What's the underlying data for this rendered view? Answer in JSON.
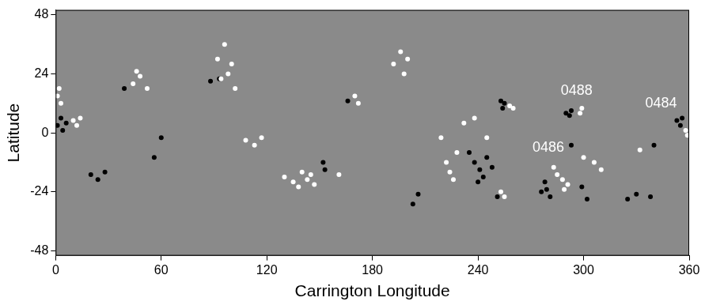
{
  "chart_data": {
    "type": "scatter",
    "x_label": "Carrington Longitude",
    "y_label": "Latitude",
    "xlim": [
      0,
      360
    ],
    "xticks": [
      0,
      60,
      120,
      180,
      240,
      300,
      360
    ],
    "ylim": [
      -50,
      50
    ],
    "yticks": [
      -48,
      -24,
      0,
      24,
      48
    ],
    "grid": false,
    "series": [
      {
        "color": "#ffffff",
        "marker": "circle",
        "x": [
          1,
          2,
          3,
          10,
          12,
          14,
          44,
          48,
          52,
          46,
          92,
          96,
          98,
          102,
          100,
          94,
          108,
          113,
          117,
          130,
          135,
          140,
          145,
          147,
          143,
          138,
          161,
          170,
          172,
          192,
          196,
          198,
          200,
          219,
          222,
          224,
          226,
          228,
          232,
          238,
          245,
          253,
          255,
          258,
          260,
          285,
          288,
          291,
          289,
          283,
          306,
          310,
          300,
          298,
          299,
          332,
          358,
          359
        ],
        "values": [
          15,
          18,
          12,
          5,
          3,
          6,
          20,
          23,
          18,
          25,
          30,
          36,
          24,
          18,
          28,
          22,
          -3,
          -5,
          -2,
          -18,
          -20,
          -16,
          -17,
          -21,
          -19,
          -22,
          -17,
          15,
          12,
          28,
          33,
          24,
          30,
          -2,
          -12,
          -16,
          -19,
          -8,
          4,
          6,
          -2,
          -24,
          -26,
          11,
          10,
          -17,
          -19,
          -21,
          -23,
          -14,
          -12,
          -15,
          -10,
          8,
          10,
          -7,
          1,
          -1
        ]
      },
      {
        "color": "#000000",
        "marker": "circle",
        "x": [
          1,
          3,
          4,
          6,
          20,
          24,
          28,
          39,
          60,
          56,
          88,
          93,
          152,
          153,
          166,
          203,
          206,
          235,
          238,
          241,
          245,
          243,
          240,
          248,
          251,
          253,
          255,
          254,
          278,
          279,
          281,
          276,
          293,
          302,
          299,
          290,
          292,
          293,
          325,
          330,
          338,
          340,
          353,
          355,
          356
        ],
        "values": [
          3,
          6,
          1,
          4,
          -17,
          -19,
          -16,
          18,
          -2,
          -10,
          21,
          22,
          -12,
          -15,
          13,
          -29,
          -25,
          -8,
          -12,
          -15,
          -10,
          -18,
          -20,
          -14,
          -26,
          13,
          12,
          10,
          -20,
          -23,
          -26,
          -24,
          -5,
          -27,
          -22,
          8,
          7,
          9,
          -27,
          -25,
          -26,
          -5,
          5,
          3,
          6
        ]
      }
    ],
    "annotations": [
      {
        "text": "0488",
        "x": 296,
        "y": 17
      },
      {
        "text": "0486",
        "x": 280,
        "y": -6
      },
      {
        "text": "0484",
        "x": 344,
        "y": 12
      }
    ]
  }
}
